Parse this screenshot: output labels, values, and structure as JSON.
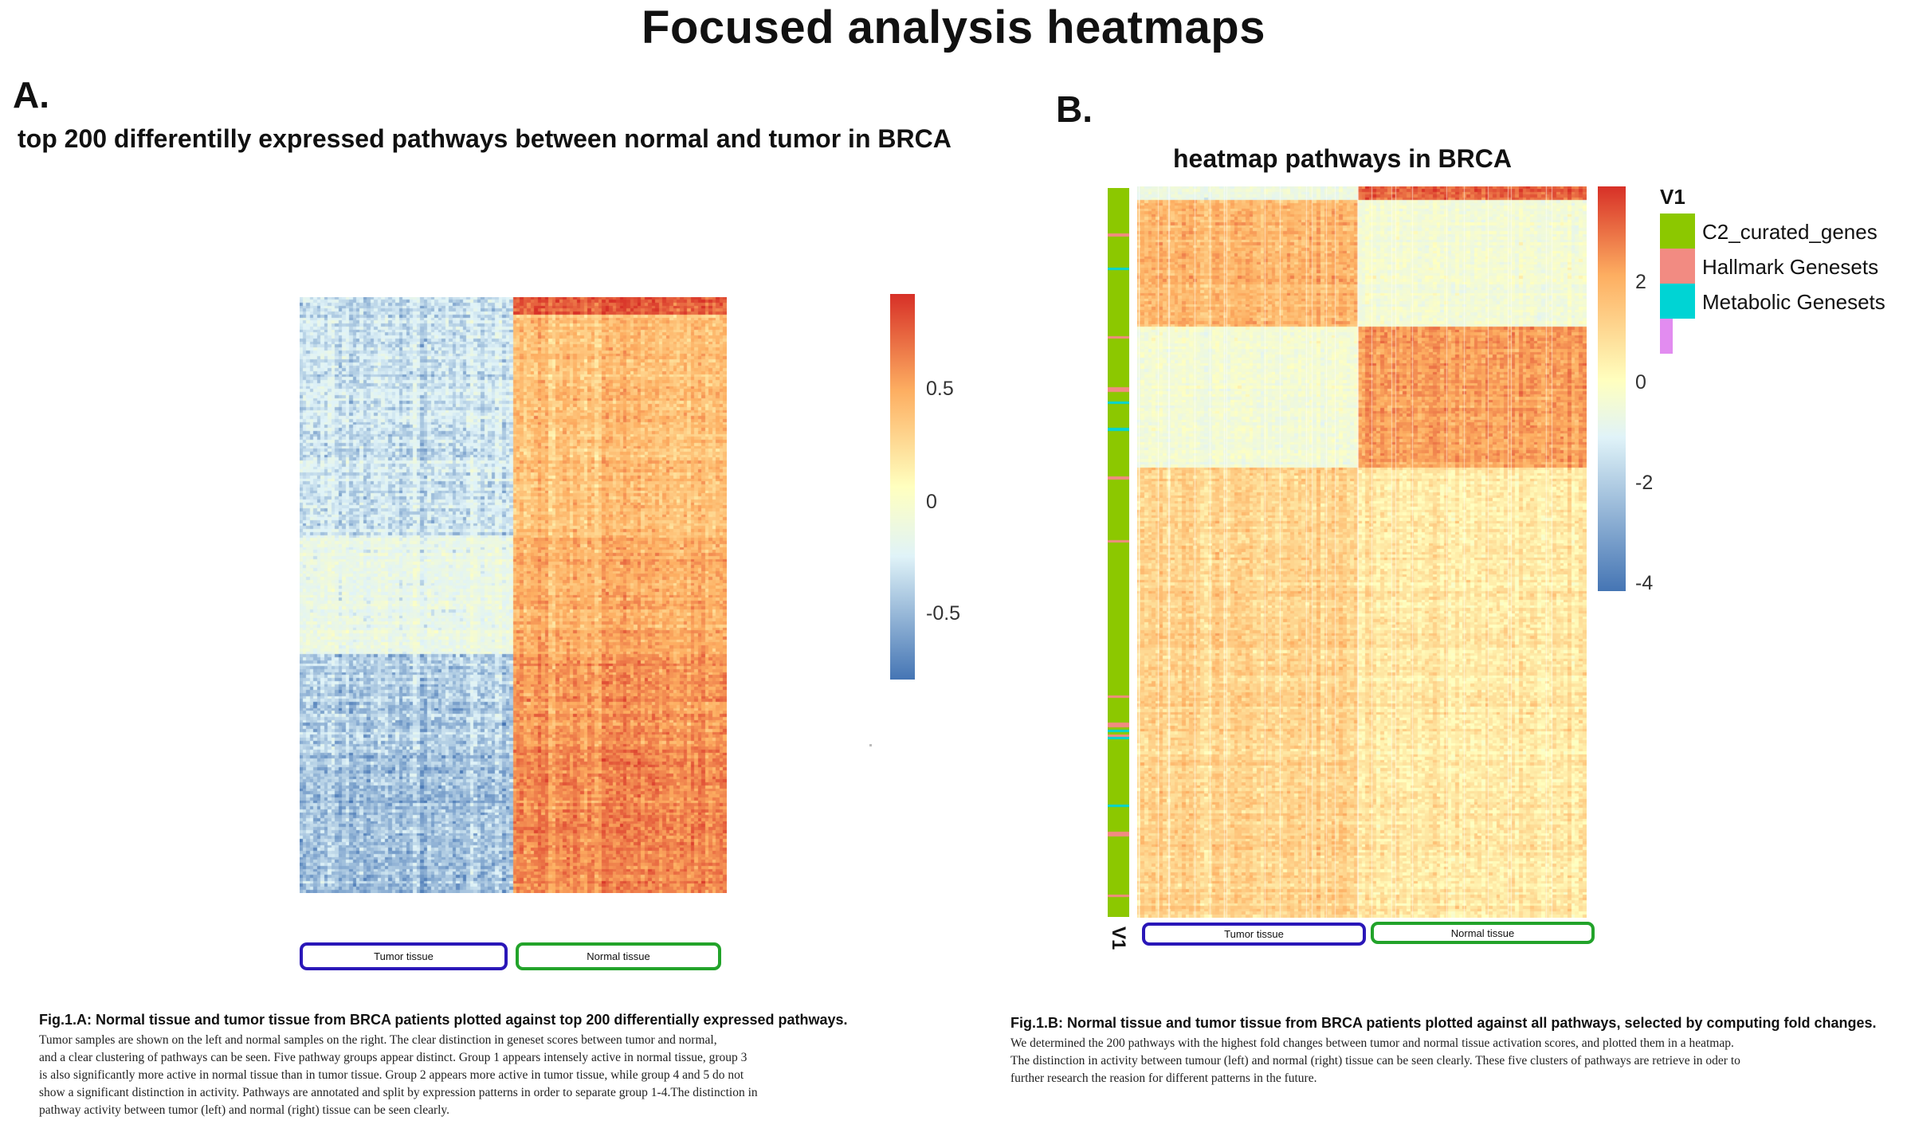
{
  "page": {
    "title": "Focused analysis heatmaps"
  },
  "panel_a": {
    "letter": "A.",
    "title": "top 200 differentilly expressed pathways between normal and tumor in BRCA",
    "groups": [
      "Tumor tissue",
      "Normal tissue"
    ],
    "caption_title": "Fig.1.A:  Normal tissue and tumor tissue from BRCA patients plotted against  top 200  differentially expressed pathways.",
    "caption_lines": [
      "Tumor samples are shown on the left and normal samples on the right. The clear distinction in geneset scores between tumor and normal,",
      "and a clear clustering of pathways can be seen. Five pathway groups appear distinct. Group 1 appears intensely active in normal tissue, group 3",
      " is also significantly more active in normal tissue than in tumor tissue. Group 2 appears more active in tumor tissue, while group 4 and 5 do not",
      "show a significant distinction in activity. Pathways are annotated and split by expression patterns in order to separate group 1-4.The distinction in",
      "pathway activity between tumor (left) and normal (right) tissue can be seen clearly."
    ]
  },
  "panel_b": {
    "letter": "B.",
    "title": "heatmap pathways in BRCA",
    "groups": [
      "Tumor tissue",
      "Normal tissue"
    ],
    "annotation_axis_label": "V1",
    "legend": {
      "title": "V1",
      "items": [
        {
          "label": "C2_curated_genes",
          "color": "#8cc800"
        },
        {
          "label": "Hallmark Genesets",
          "color": "#f28b82"
        },
        {
          "label": "Metabolic Genesets",
          "color": "#00d4d4"
        },
        {
          "label": "",
          "color": "#e28cf0"
        }
      ]
    },
    "caption_title": "Fig.1.B: Normal tissue and tumor tissue from BRCA patients plotted against all pathways, selected by computing fold changes.",
    "caption_lines": [
      "We determined the 200 pathways with the highest fold changes between tumor and normal tissue activation scores, and plotted them in a heatmap.",
      "The distinction in activity between tumour (left) and normal (right) tissue can be seen clearly. These five clusters of pathways are retrieve in oder to",
      "further research the reasion for different patterns in the future."
    ]
  },
  "chart_data": [
    {
      "type": "heatmap",
      "title": "top 200 differentilly expressed pathways between normal and tumor in BRCA",
      "column_groups": [
        "Tumor tissue",
        "Normal tissue"
      ],
      "color_scale": {
        "ticks": [
          0.5,
          0,
          -0.5
        ],
        "tick_labels": [
          "0.5",
          "0",
          "-0.5"
        ],
        "range": [
          -0.8,
          0.9
        ],
        "colors": [
          "#4575b4",
          "#e0f3f8",
          "#ffffbf",
          "#fdae61",
          "#d73027"
        ]
      },
      "row_blocks": [
        {
          "rows": 6,
          "tumor_value": -0.45,
          "normal_value": 0.75
        },
        {
          "rows": 74,
          "tumor_value": -0.42,
          "normal_value": 0.38
        },
        {
          "rows": 40,
          "tumor_value": -0.25,
          "normal_value": 0.45
        },
        {
          "rows": 32,
          "tumor_value": -0.5,
          "normal_value": 0.55
        },
        {
          "rows": 48,
          "tumor_value": -0.55,
          "normal_value": 0.6
        }
      ]
    },
    {
      "type": "heatmap",
      "title": "heatmap pathways in BRCA",
      "column_groups": [
        "Tumor tissue",
        "Normal tissue"
      ],
      "color_scale": {
        "ticks": [
          2,
          0,
          -2,
          -4
        ],
        "tick_labels": [
          "2",
          "0",
          "-2",
          "-4"
        ],
        "range": [
          -4,
          3.7
        ],
        "colors": [
          "#4575b4",
          "#e0f3f8",
          "#ffffbf",
          "#fdae61",
          "#d73027"
        ]
      },
      "row_blocks": [
        {
          "rows": 5,
          "tumor_value": -1.2,
          "normal_value": 3.0
        },
        {
          "rows": 45,
          "tumor_value": 1.5,
          "normal_value": -0.9
        },
        {
          "rows": 50,
          "tumor_value": -0.9,
          "normal_value": 2.0
        },
        {
          "rows": 160,
          "tumor_value": 0.9,
          "normal_value": 0.4
        }
      ]
    }
  ]
}
